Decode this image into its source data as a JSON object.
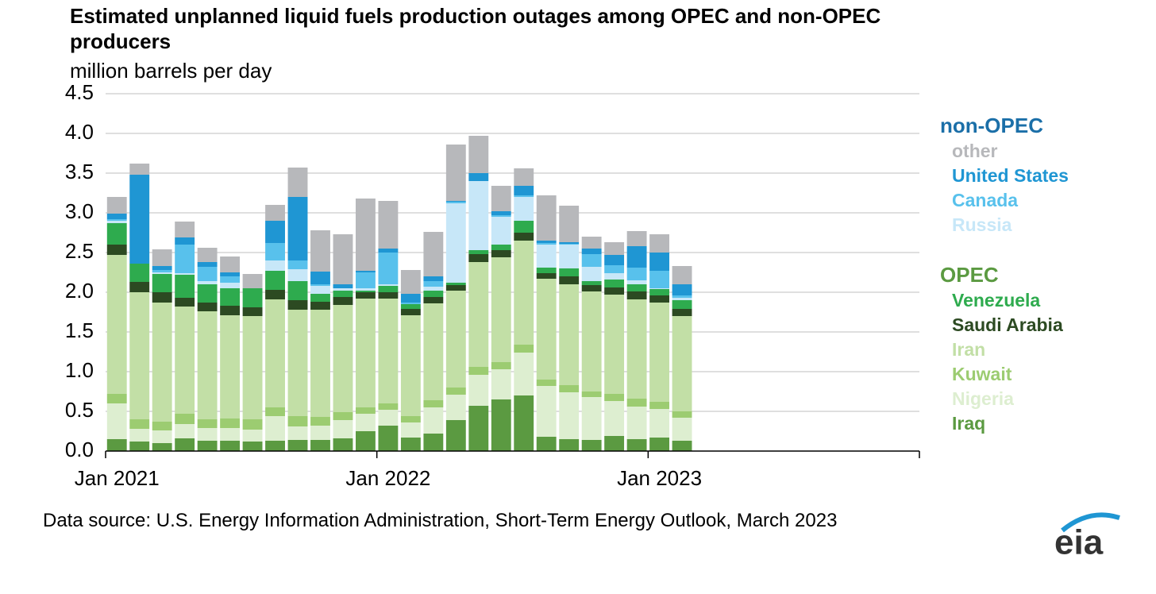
{
  "chart_data": {
    "type": "stacked_bar",
    "title": "Estimated unplanned liquid fuels production outages among OPEC and non-OPEC producers",
    "subtitle": "million barrels per day",
    "source": "Data source: U.S. Energy Information Administration, Short-Term Energy Outlook, March 2023",
    "logo": "eia",
    "categories": [
      "Jan 2021",
      null,
      null,
      null,
      null,
      null,
      null,
      null,
      null,
      null,
      null,
      null,
      "Jan 2022",
      null,
      null,
      null,
      null,
      null,
      null,
      null,
      null,
      null,
      null,
      null,
      "Jan 2023",
      null,
      null,
      null,
      null,
      null,
      null,
      null,
      null,
      null,
      null,
      null
    ],
    "ylim": [
      0,
      4.5
    ],
    "yticks": [
      {
        "value": 0,
        "label": "0.0"
      },
      0.5,
      {
        "value": 1,
        "label": "1.0"
      },
      1.5,
      {
        "value": 2,
        "label": "2.0"
      },
      2.5,
      {
        "value": 3,
        "label": "3.0"
      },
      3.5,
      {
        "value": 4,
        "label": "4.0"
      },
      4.5
    ],
    "grid": true,
    "legend_groups": [
      {
        "name": "non-OPEC",
        "color": "#1b6fa8"
      },
      {
        "name": "OPEC",
        "color": "#5b9a41"
      }
    ],
    "series": [
      {
        "name": "Iraq",
        "group": "OPEC",
        "color": "#5b9a41",
        "values": [
          0.15,
          0.12,
          0.1,
          0.16,
          0.13,
          0.13,
          0.12,
          0.13,
          0.14,
          0.14,
          0.16,
          0.25,
          0.32,
          0.17,
          0.22,
          0.39,
          0.57,
          0.65,
          0.7,
          0.18,
          0.15,
          0.14,
          0.19,
          0.15,
          0.17,
          0.13,
          null,
          null,
          null,
          null,
          null,
          null,
          null,
          null,
          null,
          null
        ]
      },
      {
        "name": "Nigeria",
        "group": "OPEC",
        "color": "#ddeed0",
        "values": [
          0.45,
          0.16,
          0.16,
          0.18,
          0.16,
          0.16,
          0.15,
          0.31,
          0.17,
          0.18,
          0.23,
          0.22,
          0.2,
          0.19,
          0.33,
          0.32,
          0.39,
          0.38,
          0.54,
          0.64,
          0.59,
          0.54,
          0.44,
          0.41,
          0.36,
          0.29,
          null,
          null,
          null,
          null,
          null,
          null,
          null,
          null,
          null,
          null
        ]
      },
      {
        "name": "Kuwait",
        "group": "OPEC",
        "color": "#9ccc71",
        "values": [
          0.12,
          0.12,
          0.11,
          0.13,
          0.11,
          0.12,
          0.13,
          0.11,
          0.13,
          0.11,
          0.1,
          0.08,
          0.08,
          0.08,
          0.09,
          0.09,
          0.1,
          0.09,
          0.1,
          0.08,
          0.09,
          0.07,
          0.09,
          0.1,
          0.09,
          0.08,
          null,
          null,
          null,
          null,
          null,
          null,
          null,
          null,
          null,
          null
        ]
      },
      {
        "name": "Iran",
        "group": "OPEC",
        "color": "#c2dfa6",
        "values": [
          1.75,
          1.6,
          1.5,
          1.35,
          1.36,
          1.3,
          1.3,
          1.36,
          1.34,
          1.35,
          1.35,
          1.37,
          1.32,
          1.27,
          1.22,
          1.22,
          1.32,
          1.32,
          1.31,
          1.27,
          1.27,
          1.26,
          1.25,
          1.25,
          1.25,
          1.2,
          null,
          null,
          null,
          null,
          null,
          null,
          null,
          null,
          null,
          null
        ]
      },
      {
        "name": "Saudi Arabia",
        "group": "OPEC",
        "color": "#2c4a22",
        "values": [
          0.13,
          0.13,
          0.13,
          0.11,
          0.11,
          0.12,
          0.11,
          0.12,
          0.12,
          0.1,
          0.1,
          0.08,
          0.08,
          0.08,
          0.08,
          0.07,
          0.1,
          0.09,
          0.1,
          0.07,
          0.1,
          0.08,
          0.09,
          0.1,
          0.09,
          0.09,
          null,
          null,
          null,
          null,
          null,
          null,
          null,
          null,
          null,
          null
        ]
      },
      {
        "name": "Venezuela",
        "group": "OPEC",
        "color": "#2eab4e",
        "values": [
          0.27,
          0.23,
          0.23,
          0.29,
          0.23,
          0.22,
          0.24,
          0.24,
          0.24,
          0.1,
          0.08,
          0.02,
          0.08,
          0.06,
          0.08,
          0.03,
          0.05,
          0.07,
          0.15,
          0.07,
          0.1,
          0.05,
          0.1,
          0.09,
          0.08,
          0.11,
          null,
          null,
          null,
          null,
          null,
          null,
          null,
          null,
          null,
          null
        ]
      },
      {
        "name": "Russia",
        "group": "non-OPEC",
        "color": "#c7e7f8",
        "values": [
          0.03,
          0,
          0.02,
          0.02,
          0.04,
          0.07,
          0,
          0.13,
          0.15,
          0.1,
          0.03,
          0.03,
          0.02,
          0,
          0.05,
          1.0,
          0.87,
          0.35,
          0.3,
          0.29,
          0.3,
          0.18,
          0.08,
          0.05,
          0.01,
          0.03,
          null,
          null,
          null,
          null,
          null,
          null,
          null,
          null,
          null,
          null
        ]
      },
      {
        "name": "Canada",
        "group": "non-OPEC",
        "color": "#58c1ec",
        "values": [
          0.02,
          0,
          0.03,
          0.36,
          0.18,
          0.08,
          0,
          0.22,
          0.11,
          0.02,
          0,
          0.2,
          0.4,
          0.02,
          0.07,
          0.02,
          0,
          0.02,
          0.02,
          0.02,
          0.01,
          0.16,
          0.1,
          0.16,
          0.22,
          0.03,
          null,
          null,
          null,
          null,
          null,
          null,
          null,
          null,
          null,
          null
        ]
      },
      {
        "name": "United States",
        "group": "non-OPEC",
        "color": "#1f96d3",
        "values": [
          0.07,
          1.12,
          0.05,
          0.09,
          0.06,
          0.05,
          0,
          0.28,
          0.8,
          0.16,
          0.05,
          0.02,
          0.05,
          0.11,
          0.06,
          0.01,
          0.1,
          0.05,
          0.12,
          0.03,
          0.02,
          0.07,
          0.13,
          0.27,
          0.23,
          0.14,
          null,
          null,
          null,
          null,
          null,
          null,
          null,
          null,
          null,
          null
        ]
      },
      {
        "name": "other",
        "group": "non-OPEC",
        "color": "#b7b8bb",
        "values": [
          0.21,
          0.14,
          0.21,
          0.2,
          0.18,
          0.2,
          0.18,
          0.2,
          0.37,
          0.52,
          0.63,
          0.91,
          0.6,
          0.3,
          0.56,
          0.71,
          0.47,
          0.32,
          0.22,
          0.57,
          0.46,
          0.15,
          0.16,
          0.19,
          0.23,
          0.23,
          null,
          null,
          null,
          null,
          null,
          null,
          null,
          null,
          null,
          null
        ]
      }
    ]
  }
}
